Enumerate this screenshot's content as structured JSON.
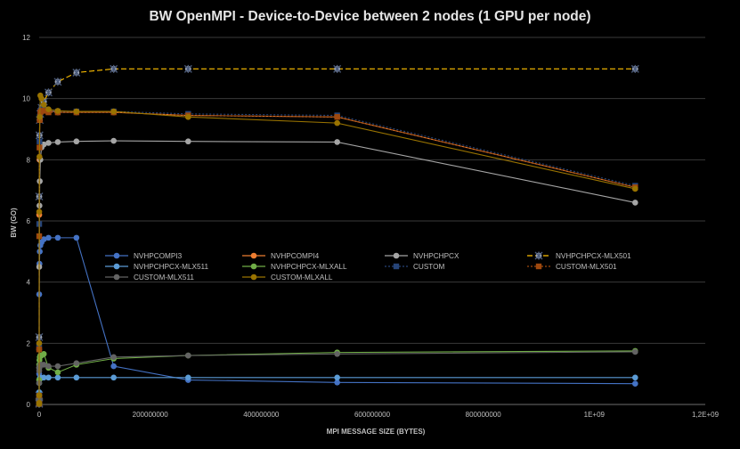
{
  "chart_data": {
    "type": "scatter",
    "title": "BW OpenMPI - Device-to-Device between 2 nodes (1 GPU per node)",
    "xlabel": "MPI MESSAGE SIZE (BYTES)",
    "ylabel": "BW (GO)",
    "xlim": [
      0,
      1200000000
    ],
    "ylim": [
      0,
      12
    ],
    "x_ticks": [
      0,
      200000000,
      400000000,
      600000000,
      800000000,
      1000000000,
      1200000000
    ],
    "x_tick_labels": [
      "0",
      "200000000",
      "400000000",
      "600000000",
      "800000000",
      "1E+09",
      "1,2E+09"
    ],
    "y_ticks": [
      0,
      2,
      4,
      6,
      8,
      10,
      12
    ],
    "y_tick_labels": [
      "0",
      "2",
      "4",
      "6",
      "8",
      "10",
      "12"
    ],
    "grid": true,
    "legend_position": "center",
    "x": [
      1,
      16,
      256,
      4096,
      65536,
      524288,
      1048576,
      2097152,
      4194304,
      8388608,
      16777216,
      33554432,
      67108864,
      134217728,
      268435456,
      536870912,
      1073741824
    ],
    "series": [
      {
        "name": "NVHPCOMPI3",
        "color": "#4472c4",
        "dash": "",
        "marker": "circle",
        "values": [
          0.01,
          0.02,
          0.1,
          1.0,
          3.6,
          4.6,
          5.0,
          5.2,
          5.3,
          5.4,
          5.45,
          5.45,
          5.45,
          1.25,
          0.8,
          0.72,
          0.68
        ]
      },
      {
        "name": "NVHPCOMPI4",
        "color": "#ed7d31",
        "dash": "",
        "marker": "circle",
        "values": [
          0.01,
          0.03,
          0.2,
          1.8,
          6.2,
          8.0,
          9.3,
          9.6,
          9.65,
          9.65,
          9.6,
          9.55,
          9.55,
          9.55,
          9.45,
          9.4,
          7.1
        ]
      },
      {
        "name": "NVHPCHPCX",
        "color": "#a5a5a5",
        "dash": "",
        "marker": "circle",
        "values": [
          0.01,
          0.02,
          0.12,
          1.2,
          4.5,
          6.5,
          7.3,
          8.0,
          8.4,
          8.5,
          8.55,
          8.58,
          8.6,
          8.62,
          8.6,
          8.58,
          6.6
        ]
      },
      {
        "name": "NVHPCHPCX-MLX501",
        "color": "#ffc000",
        "dash": "6,3",
        "marker": "star",
        "values": [
          0.02,
          0.05,
          0.3,
          2.2,
          6.8,
          8.8,
          9.3,
          9.5,
          9.7,
          9.9,
          10.2,
          10.55,
          10.85,
          10.97,
          10.97,
          10.97,
          10.97
        ]
      },
      {
        "name": "NVHPCHPCX-MLX511",
        "color": "#5b9bd5",
        "dash": "",
        "marker": "circle",
        "values": [
          0.01,
          0.03,
          0.1,
          0.4,
          0.7,
          0.82,
          0.85,
          0.87,
          0.87,
          0.88,
          0.88,
          0.88,
          0.88,
          0.88,
          0.88,
          0.88,
          0.88
        ]
      },
      {
        "name": "NVHPCHPCX-MLXALL",
        "color": "#70ad47",
        "dash": "",
        "marker": "circle",
        "values": [
          0.01,
          0.04,
          0.2,
          0.8,
          1.3,
          1.45,
          1.55,
          1.6,
          1.6,
          1.65,
          1.2,
          1.05,
          1.3,
          1.5,
          1.6,
          1.7,
          1.75
        ]
      },
      {
        "name": "CUSTOM",
        "color": "#264478",
        "dash": "2,2",
        "marker": "square",
        "values": [
          0.02,
          0.05,
          0.3,
          1.9,
          5.9,
          8.6,
          9.4,
          9.6,
          9.65,
          9.65,
          9.6,
          9.58,
          9.58,
          9.58,
          9.5,
          9.45,
          7.15
        ]
      },
      {
        "name": "CUSTOM-MLX501",
        "color": "#9e480e",
        "dash": "2,2",
        "marker": "square",
        "values": [
          0.02,
          0.05,
          0.28,
          1.8,
          5.5,
          8.4,
          9.3,
          9.55,
          9.6,
          9.6,
          9.55,
          9.55,
          9.55,
          9.55,
          9.45,
          9.4,
          7.1
        ]
      },
      {
        "name": "CUSTOM-MLX511",
        "color": "#636363",
        "dash": "",
        "marker": "circle",
        "values": [
          0.01,
          0.03,
          0.15,
          0.7,
          1.1,
          1.2,
          1.25,
          1.3,
          1.3,
          1.3,
          1.25,
          1.25,
          1.35,
          1.55,
          1.6,
          1.65,
          1.72
        ]
      },
      {
        "name": "CUSTOM-MLXALL",
        "color": "#997300",
        "dash": "",
        "marker": "circle",
        "values": [
          0.02,
          0.05,
          0.3,
          2.0,
          6.3,
          8.1,
          9.4,
          10.1,
          10.0,
          9.8,
          9.65,
          9.6,
          9.58,
          9.58,
          9.4,
          9.2,
          7.05
        ]
      }
    ]
  }
}
